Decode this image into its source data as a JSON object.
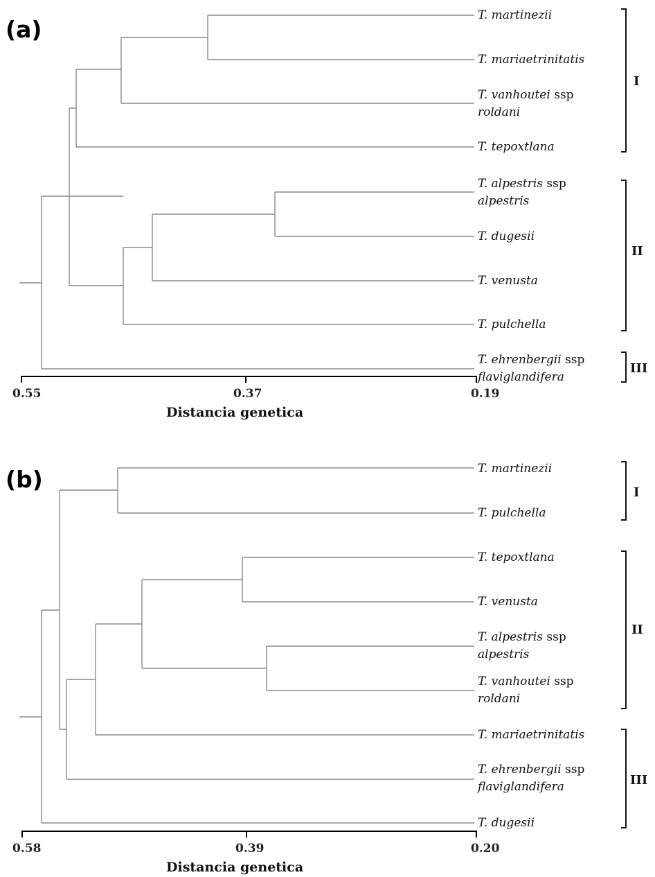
{
  "panels": [
    {
      "label": "(a)",
      "axis": {
        "title": "Distancia genetica",
        "ticks": [
          {
            "value": 0.55,
            "label": "0.55"
          },
          {
            "value": 0.37,
            "label": "0.37"
          },
          {
            "value": 0.19,
            "label": "0.19"
          }
        ]
      },
      "leaves": [
        {
          "id": "a1",
          "genus": "T.",
          "epithet": "martinezii"
        },
        {
          "id": "a2",
          "genus": "T.",
          "epithet": "mariaetrinitatis"
        },
        {
          "id": "a3",
          "genus": "T.",
          "epithet": "vanhoutei",
          "ssp_word": "ssp",
          "ssp": "roldani"
        },
        {
          "id": "a4",
          "genus": "T.",
          "epithet": "tepoxtlana"
        },
        {
          "id": "a5",
          "genus": "T.",
          "epithet": "alpestris",
          "ssp_word": "ssp",
          "ssp": "alpestris"
        },
        {
          "id": "a6",
          "genus": "T.",
          "epithet": "dugesii"
        },
        {
          "id": "a7",
          "genus": "T.",
          "epithet": "venusta"
        },
        {
          "id": "a8",
          "genus": "T.",
          "epithet": "pulchella"
        },
        {
          "id": "a9",
          "genus": "T.",
          "epithet": "ehrenbergii",
          "ssp_word": "ssp",
          "ssp": "flaviglandifera"
        }
      ],
      "groups": [
        {
          "label": "I",
          "members": [
            "a1",
            "a2",
            "a3",
            "a4"
          ]
        },
        {
          "label": "II",
          "members": [
            "a5",
            "a6",
            "a7",
            "a8"
          ]
        },
        {
          "label": "III",
          "members": [
            "a9"
          ]
        }
      ]
    },
    {
      "label": "(b)",
      "axis": {
        "title": "Distancia genetica",
        "ticks": [
          {
            "value": 0.58,
            "label": "0.58"
          },
          {
            "value": 0.39,
            "label": "0.39"
          },
          {
            "value": 0.2,
            "label": "0.20"
          }
        ]
      },
      "leaves": [
        {
          "id": "b1",
          "genus": "T.",
          "epithet": "martinezii"
        },
        {
          "id": "b2",
          "genus": "T.",
          "epithet": "pulchella"
        },
        {
          "id": "b3",
          "genus": "T.",
          "epithet": "tepoxtlana"
        },
        {
          "id": "b4",
          "genus": "T.",
          "epithet": "venusta"
        },
        {
          "id": "b5",
          "genus": "T.",
          "epithet": "alpestris",
          "ssp_word": "ssp",
          "ssp": "alpestris"
        },
        {
          "id": "b6",
          "genus": "T.",
          "epithet": "vanhoutei",
          "ssp_word": "ssp",
          "ssp": "roldani"
        },
        {
          "id": "b7",
          "genus": "T.",
          "epithet": "mariaetrinitatis"
        },
        {
          "id": "b8",
          "genus": "T.",
          "epithet": "ehrenbergii",
          "ssp_word": "ssp",
          "ssp": "flaviglandifera"
        },
        {
          "id": "b9",
          "genus": "T.",
          "epithet": "dugesii"
        }
      ],
      "groups": [
        {
          "label": "I",
          "members": [
            "b1",
            "b2"
          ]
        },
        {
          "label": "II",
          "members": [
            "b3",
            "b4",
            "b5",
            "b6"
          ]
        },
        {
          "label": "III",
          "members": [
            "b7",
            "b8",
            "b9"
          ]
        }
      ]
    }
  ]
}
